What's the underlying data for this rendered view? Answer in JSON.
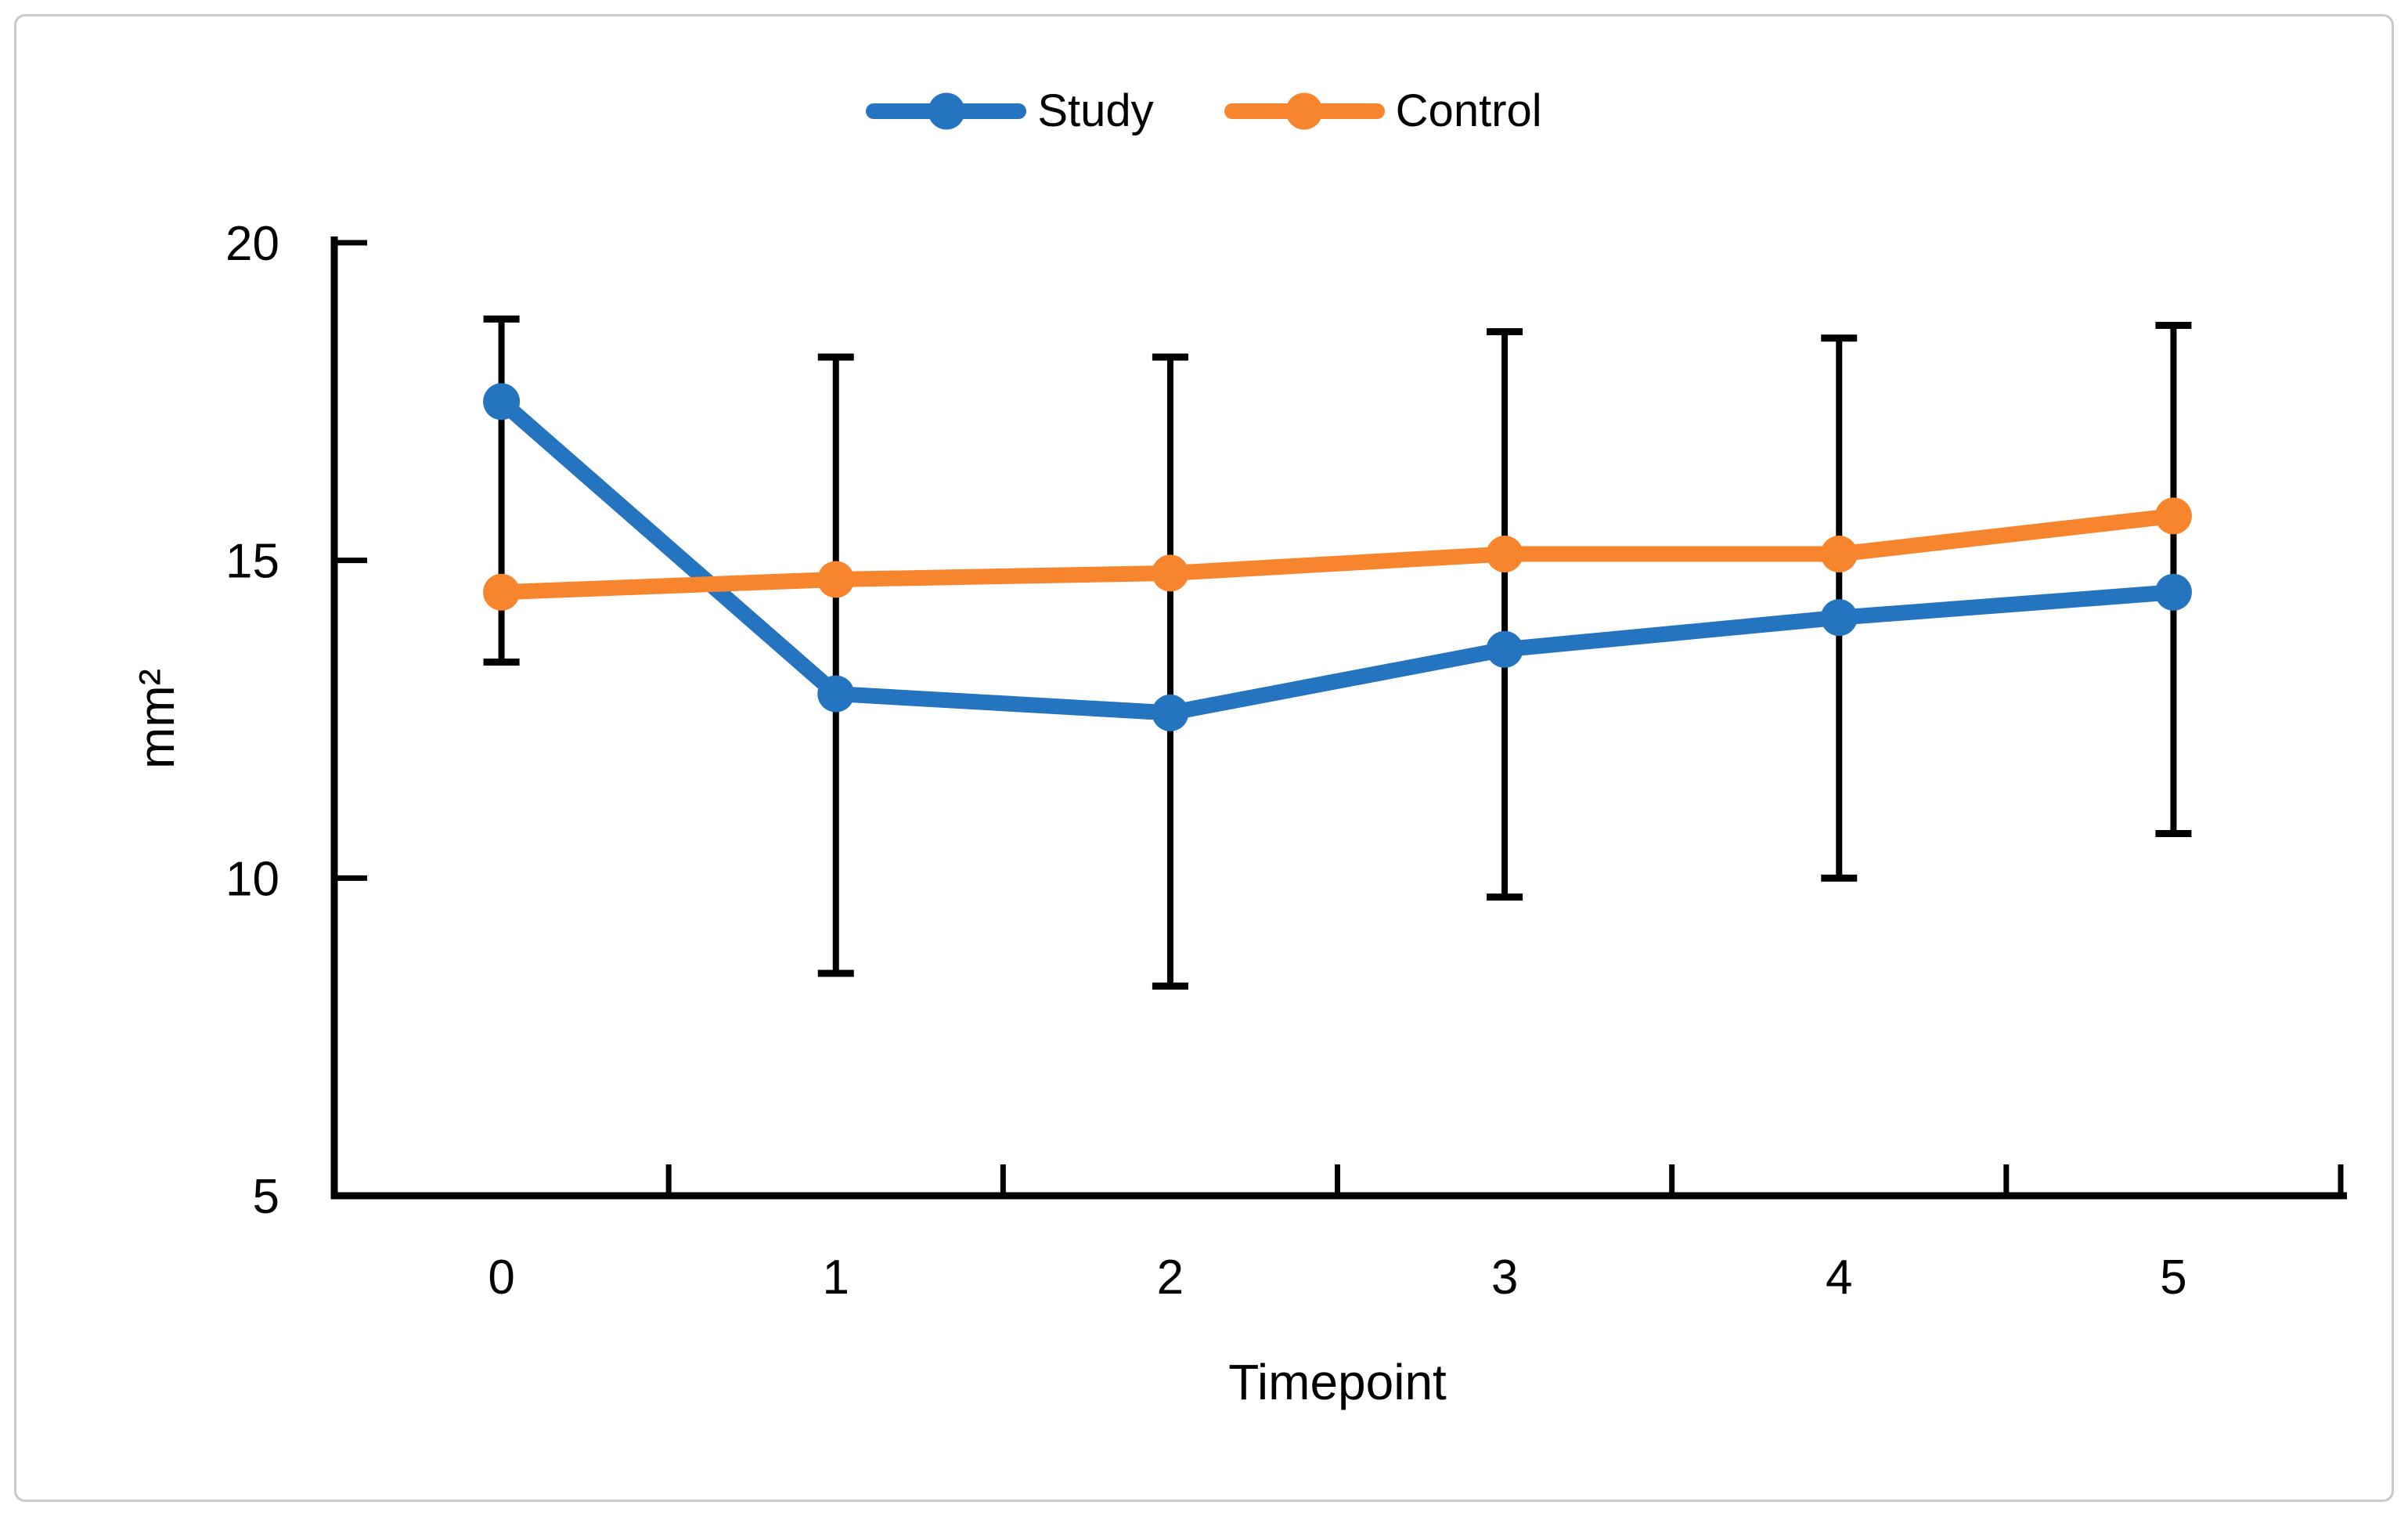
{
  "figure": {
    "background": "#FFFFFF",
    "border_color": "#C9C9C9"
  },
  "chart_data": {
    "type": "line",
    "title": "",
    "xlabel": "Timepoint",
    "ylabel": "mm²",
    "categories": [
      "0",
      "1",
      "2",
      "3",
      "4",
      "5"
    ],
    "series": [
      {
        "name": "Study",
        "color": "#2574BF",
        "marker": "circle",
        "values": [
          17.5,
          12.9,
          12.6,
          13.6,
          14.1,
          14.5
        ]
      },
      {
        "name": "Control",
        "color": "#F7852E",
        "marker": "circle",
        "values": [
          14.5,
          14.7,
          14.8,
          15.1,
          15.1,
          15.7
        ]
      }
    ],
    "error_bars": {
      "color": "#000000",
      "top": [
        18.8,
        18.2,
        18.2,
        18.6,
        18.5,
        18.7
      ],
      "bottom": [
        13.4,
        8.5,
        8.3,
        9.7,
        10.0,
        10.7
      ]
    },
    "y_ticks": [
      5,
      10,
      15,
      20
    ],
    "ylim": [
      5,
      20
    ],
    "grid": "off",
    "legend_position": "top",
    "axis_color": "#000000",
    "tick_style": "inside"
  }
}
